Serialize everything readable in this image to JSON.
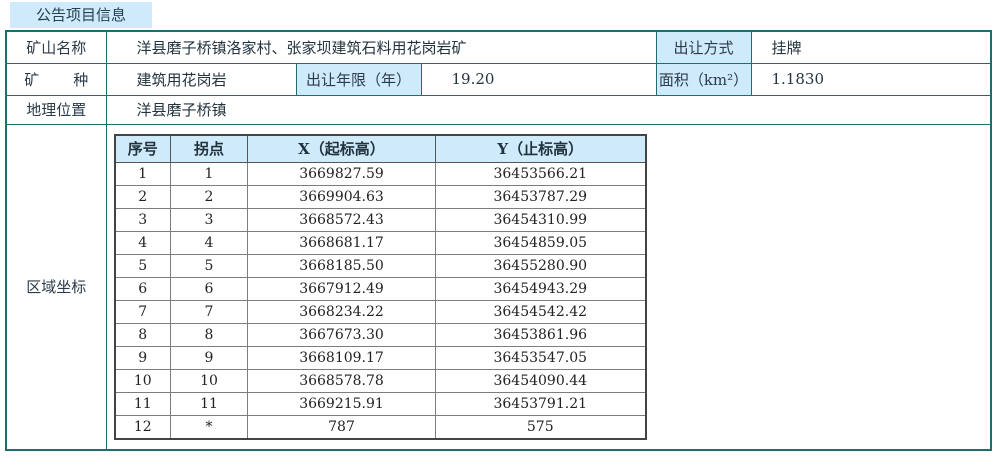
{
  "tab": {
    "label": "公告项目信息"
  },
  "colors": {
    "border_teal": "#1e6e6e",
    "highlight_blue": "#cfeafa"
  },
  "info": {
    "mine_name": {
      "label": "矿山名称",
      "value": "洋县磨子桥镇洛家村、张家坝建筑石料用花岗岩矿"
    },
    "transfer_method": {
      "label": "出让方式",
      "value": "挂牌"
    },
    "mineral_char_1": "矿",
    "mineral_char_2": "种",
    "mineral_type": {
      "value": "建筑用花岗岩"
    },
    "transfer_years": {
      "label": "出让年限（年）",
      "value": "19.20"
    },
    "area": {
      "label": "面积（km²）",
      "value": "1.1830"
    },
    "location": {
      "label": "地理位置",
      "value": "洋县磨子桥镇"
    },
    "coordinates_label": "区域坐标"
  },
  "coordinate_table": {
    "headers": [
      "序号",
      "拐点",
      "X（起标高）",
      "Y（止标高）"
    ],
    "rows": [
      [
        "1",
        "1",
        "3669827.59",
        "36453566.21"
      ],
      [
        "2",
        "2",
        "3669904.63",
        "36453787.29"
      ],
      [
        "3",
        "3",
        "3668572.43",
        "36454310.99"
      ],
      [
        "4",
        "4",
        "3668681.17",
        "36454859.05"
      ],
      [
        "5",
        "5",
        "3668185.50",
        "36455280.90"
      ],
      [
        "6",
        "6",
        "3667912.49",
        "36454943.29"
      ],
      [
        "7",
        "7",
        "3668234.22",
        "36454542.42"
      ],
      [
        "8",
        "8",
        "3667673.30",
        "36453861.96"
      ],
      [
        "9",
        "9",
        "3668109.17",
        "36453547.05"
      ],
      [
        "10",
        "10",
        "3668578.78",
        "36454090.44"
      ],
      [
        "11",
        "11",
        "3669215.91",
        "36453791.21"
      ],
      [
        "12",
        "*",
        "787",
        "575"
      ]
    ]
  }
}
